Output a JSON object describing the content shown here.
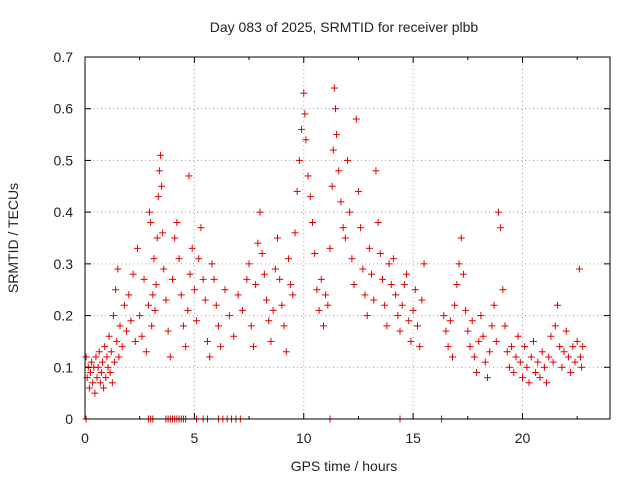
{
  "chart_data": {
    "type": "scatter",
    "title": "Day 083 of 2025, SRMTID for receiver plbb",
    "xlabel": "GPS time / hours",
    "ylabel": "SRMTID / TECUs",
    "xlim": [
      0,
      24
    ],
    "ylim": [
      0,
      0.7
    ],
    "x_ticks": [
      0,
      5,
      10,
      15,
      20
    ],
    "x_tick_labels": [
      "0",
      "5",
      "10",
      "15",
      "20"
    ],
    "y_ticks": [
      0,
      0.1,
      0.2,
      0.3,
      0.4,
      0.5,
      0.6,
      0.7
    ],
    "y_tick_labels": [
      "0",
      "0.1",
      "0.2",
      "0.3",
      "0.4",
      "0.5",
      "0.6",
      "0.7"
    ],
    "grid": true,
    "marker": "plus",
    "color": "#e00000",
    "series": [
      {
        "name": "SRMTID",
        "points": [
          [
            0.05,
            0.12
          ],
          [
            0.1,
            0.08
          ],
          [
            0.15,
            0.1
          ],
          [
            0.2,
            0.06
          ],
          [
            0.25,
            0.09
          ],
          [
            0.3,
            0.11
          ],
          [
            0.35,
            0.07
          ],
          [
            0.4,
            0.1
          ],
          [
            0.45,
            0.05
          ],
          [
            0.5,
            0.12
          ],
          [
            0.55,
            0.08
          ],
          [
            0.6,
            0.1
          ],
          [
            0.65,
            0.13
          ],
          [
            0.7,
            0.07
          ],
          [
            0.75,
            0.09
          ],
          [
            0.8,
            0.11
          ],
          [
            0.85,
            0.06
          ],
          [
            0.9,
            0.14
          ],
          [
            0.95,
            0.08
          ],
          [
            1.0,
            0.12
          ],
          [
            1.05,
            0.1
          ],
          [
            1.1,
            0.16
          ],
          [
            1.15,
            0.09
          ],
          [
            1.2,
            0.13
          ],
          [
            1.25,
            0.07
          ],
          [
            1.3,
            0.2
          ],
          [
            1.35,
            0.11
          ],
          [
            1.4,
            0.25
          ],
          [
            1.45,
            0.15
          ],
          [
            1.5,
            0.29
          ],
          [
            1.55,
            0.12
          ],
          [
            1.6,
            0.18
          ],
          [
            1.7,
            0.14
          ],
          [
            1.8,
            0.22
          ],
          [
            1.9,
            0.17
          ],
          [
            2.0,
            0.24
          ],
          [
            2.1,
            0.19
          ],
          [
            2.2,
            0.28
          ],
          [
            2.3,
            0.15
          ],
          [
            2.4,
            0.33
          ],
          [
            2.5,
            0.2
          ],
          [
            2.6,
            0.16
          ],
          [
            2.7,
            0.27
          ],
          [
            2.8,
            0.13
          ],
          [
            2.9,
            0.22
          ],
          [
            2.95,
            0.4
          ],
          [
            3.0,
            0.38
          ],
          [
            3.05,
            0.18
          ],
          [
            3.1,
            0.24
          ],
          [
            3.15,
            0.31
          ],
          [
            3.2,
            0.21
          ],
          [
            3.25,
            0.26
          ],
          [
            3.3,
            0.35
          ],
          [
            3.35,
            0.43
          ],
          [
            3.4,
            0.48
          ],
          [
            3.45,
            0.51
          ],
          [
            3.5,
            0.45
          ],
          [
            3.55,
            0.36
          ],
          [
            3.6,
            0.29
          ],
          [
            3.7,
            0.23
          ],
          [
            3.8,
            0.17
          ],
          [
            3.9,
            0.12
          ],
          [
            4.0,
            0.27
          ],
          [
            4.1,
            0.35
          ],
          [
            4.2,
            0.38
          ],
          [
            4.3,
            0.31
          ],
          [
            4.4,
            0.24
          ],
          [
            4.5,
            0.18
          ],
          [
            4.6,
            0.14
          ],
          [
            4.7,
            0.21
          ],
          [
            4.75,
            0.47
          ],
          [
            4.8,
            0.28
          ],
          [
            4.9,
            0.33
          ],
          [
            5.0,
            0.25
          ],
          [
            5.1,
            0.19
          ],
          [
            5.2,
            0.31
          ],
          [
            5.3,
            0.37
          ],
          [
            5.4,
            0.27
          ],
          [
            5.5,
            0.23
          ],
          [
            5.6,
            0.15
          ],
          [
            5.7,
            0.12
          ],
          [
            5.8,
            0.3
          ],
          [
            5.9,
            0.27
          ],
          [
            6.0,
            0.22
          ],
          [
            6.1,
            0.18
          ],
          [
            6.2,
            0.14
          ],
          [
            6.4,
            0.25
          ],
          [
            6.6,
            0.2
          ],
          [
            6.8,
            0.16
          ],
          [
            7.0,
            0.24
          ],
          [
            7.2,
            0.21
          ],
          [
            7.4,
            0.27
          ],
          [
            7.5,
            0.3
          ],
          [
            7.6,
            0.18
          ],
          [
            7.7,
            0.14
          ],
          [
            7.8,
            0.26
          ],
          [
            7.9,
            0.34
          ],
          [
            8.0,
            0.4
          ],
          [
            8.1,
            0.32
          ],
          [
            8.2,
            0.28
          ],
          [
            8.3,
            0.23
          ],
          [
            8.4,
            0.19
          ],
          [
            8.5,
            0.15
          ],
          [
            8.6,
            0.21
          ],
          [
            8.7,
            0.29
          ],
          [
            8.8,
            0.35
          ],
          [
            8.9,
            0.27
          ],
          [
            9.0,
            0.22
          ],
          [
            9.1,
            0.18
          ],
          [
            9.2,
            0.13
          ],
          [
            9.3,
            0.31
          ],
          [
            9.4,
            0.26
          ],
          [
            9.5,
            0.24
          ],
          [
            9.6,
            0.36
          ],
          [
            9.7,
            0.44
          ],
          [
            9.8,
            0.5
          ],
          [
            9.9,
            0.56
          ],
          [
            10.0,
            0.63
          ],
          [
            10.05,
            0.59
          ],
          [
            10.1,
            0.54
          ],
          [
            10.2,
            0.47
          ],
          [
            10.3,
            0.43
          ],
          [
            10.4,
            0.38
          ],
          [
            10.5,
            0.32
          ],
          [
            10.6,
            0.25
          ],
          [
            10.7,
            0.21
          ],
          [
            10.8,
            0.27
          ],
          [
            10.9,
            0.18
          ],
          [
            11.0,
            0.24
          ],
          [
            11.1,
            0.22
          ],
          [
            11.2,
            0.33
          ],
          [
            11.3,
            0.45
          ],
          [
            11.35,
            0.52
          ],
          [
            11.4,
            0.64
          ],
          [
            11.45,
            0.6
          ],
          [
            11.5,
            0.55
          ],
          [
            11.6,
            0.48
          ],
          [
            11.7,
            0.42
          ],
          [
            11.8,
            0.37
          ],
          [
            11.9,
            0.35
          ],
          [
            12.0,
            0.5
          ],
          [
            12.1,
            0.4
          ],
          [
            12.2,
            0.31
          ],
          [
            12.3,
            0.26
          ],
          [
            12.4,
            0.58
          ],
          [
            12.5,
            0.44
          ],
          [
            12.6,
            0.37
          ],
          [
            12.7,
            0.29
          ],
          [
            12.8,
            0.24
          ],
          [
            12.9,
            0.2
          ],
          [
            13.0,
            0.33
          ],
          [
            13.1,
            0.28
          ],
          [
            13.2,
            0.23
          ],
          [
            13.3,
            0.48
          ],
          [
            13.4,
            0.38
          ],
          [
            13.5,
            0.32
          ],
          [
            13.6,
            0.27
          ],
          [
            13.7,
            0.22
          ],
          [
            13.8,
            0.18
          ],
          [
            13.9,
            0.3
          ],
          [
            14.0,
            0.26
          ],
          [
            14.1,
            0.31
          ],
          [
            14.2,
            0.24
          ],
          [
            14.3,
            0.2
          ],
          [
            14.4,
            0.17
          ],
          [
            14.5,
            0.22
          ],
          [
            14.6,
            0.26
          ],
          [
            14.7,
            0.28
          ],
          [
            14.8,
            0.19
          ],
          [
            14.9,
            0.15
          ],
          [
            15.0,
            0.21
          ],
          [
            15.1,
            0.25
          ],
          [
            15.2,
            0.18
          ],
          [
            15.3,
            0.14
          ],
          [
            15.4,
            0.23
          ],
          [
            15.5,
            0.3
          ],
          [
            16.4,
            0.2
          ],
          [
            16.5,
            0.17
          ],
          [
            16.6,
            0.14
          ],
          [
            16.7,
            0.19
          ],
          [
            16.8,
            0.12
          ],
          [
            16.9,
            0.22
          ],
          [
            17.0,
            0.26
          ],
          [
            17.1,
            0.3
          ],
          [
            17.2,
            0.35
          ],
          [
            17.3,
            0.28
          ],
          [
            17.4,
            0.21
          ],
          [
            17.5,
            0.17
          ],
          [
            17.6,
            0.14
          ],
          [
            17.7,
            0.19
          ],
          [
            17.8,
            0.12
          ],
          [
            17.9,
            0.09
          ],
          [
            18.0,
            0.15
          ],
          [
            18.1,
            0.2
          ],
          [
            18.2,
            0.16
          ],
          [
            18.3,
            0.11
          ],
          [
            18.4,
            0.08
          ],
          [
            18.5,
            0.13
          ],
          [
            18.6,
            0.18
          ],
          [
            18.7,
            0.22
          ],
          [
            18.8,
            0.15
          ],
          [
            18.9,
            0.4
          ],
          [
            19.0,
            0.37
          ],
          [
            19.1,
            0.25
          ],
          [
            19.2,
            0.18
          ],
          [
            19.3,
            0.13
          ],
          [
            19.4,
            0.1
          ],
          [
            19.5,
            0.14
          ],
          [
            19.6,
            0.09
          ],
          [
            19.7,
            0.12
          ],
          [
            19.8,
            0.16
          ],
          [
            19.9,
            0.11
          ],
          [
            20.0,
            0.08
          ],
          [
            20.1,
            0.14
          ],
          [
            20.2,
            0.1
          ],
          [
            20.3,
            0.07
          ],
          [
            20.4,
            0.12
          ],
          [
            20.5,
            0.15
          ],
          [
            20.6,
            0.09
          ],
          [
            20.7,
            0.11
          ],
          [
            20.8,
            0.08
          ],
          [
            20.9,
            0.13
          ],
          [
            21.0,
            0.1
          ],
          [
            21.1,
            0.07
          ],
          [
            21.2,
            0.12
          ],
          [
            21.3,
            0.16
          ],
          [
            21.4,
            0.11
          ],
          [
            21.5,
            0.18
          ],
          [
            21.6,
            0.22
          ],
          [
            21.7,
            0.14
          ],
          [
            21.8,
            0.1
          ],
          [
            21.9,
            0.13
          ],
          [
            22.0,
            0.17
          ],
          [
            22.1,
            0.12
          ],
          [
            22.2,
            0.09
          ],
          [
            22.3,
            0.14
          ],
          [
            22.4,
            0.11
          ],
          [
            22.5,
            0.15
          ],
          [
            22.6,
            0.29
          ],
          [
            22.65,
            0.12
          ],
          [
            22.7,
            0.1
          ],
          [
            22.75,
            0.14
          ],
          [
            0.05,
            0.0
          ],
          [
            2.9,
            0.0
          ],
          [
            3.0,
            0.0
          ],
          [
            3.1,
            0.0
          ],
          [
            3.7,
            0.0
          ],
          [
            3.8,
            0.0
          ],
          [
            3.9,
            0.0
          ],
          [
            4.0,
            0.0
          ],
          [
            4.1,
            0.0
          ],
          [
            4.2,
            0.0
          ],
          [
            4.3,
            0.0
          ],
          [
            4.4,
            0.0
          ],
          [
            4.5,
            0.0
          ],
          [
            4.6,
            0.0
          ],
          [
            5.1,
            0.0
          ],
          [
            5.4,
            0.0
          ],
          [
            5.6,
            0.0
          ],
          [
            6.1,
            0.0
          ],
          [
            6.3,
            0.0
          ],
          [
            6.5,
            0.0
          ],
          [
            6.7,
            0.0
          ],
          [
            6.9,
            0.0
          ],
          [
            7.1,
            0.0
          ],
          [
            11.2,
            0.0
          ],
          [
            14.4,
            0.0
          ],
          [
            16.3,
            0.0
          ]
        ]
      }
    ]
  }
}
